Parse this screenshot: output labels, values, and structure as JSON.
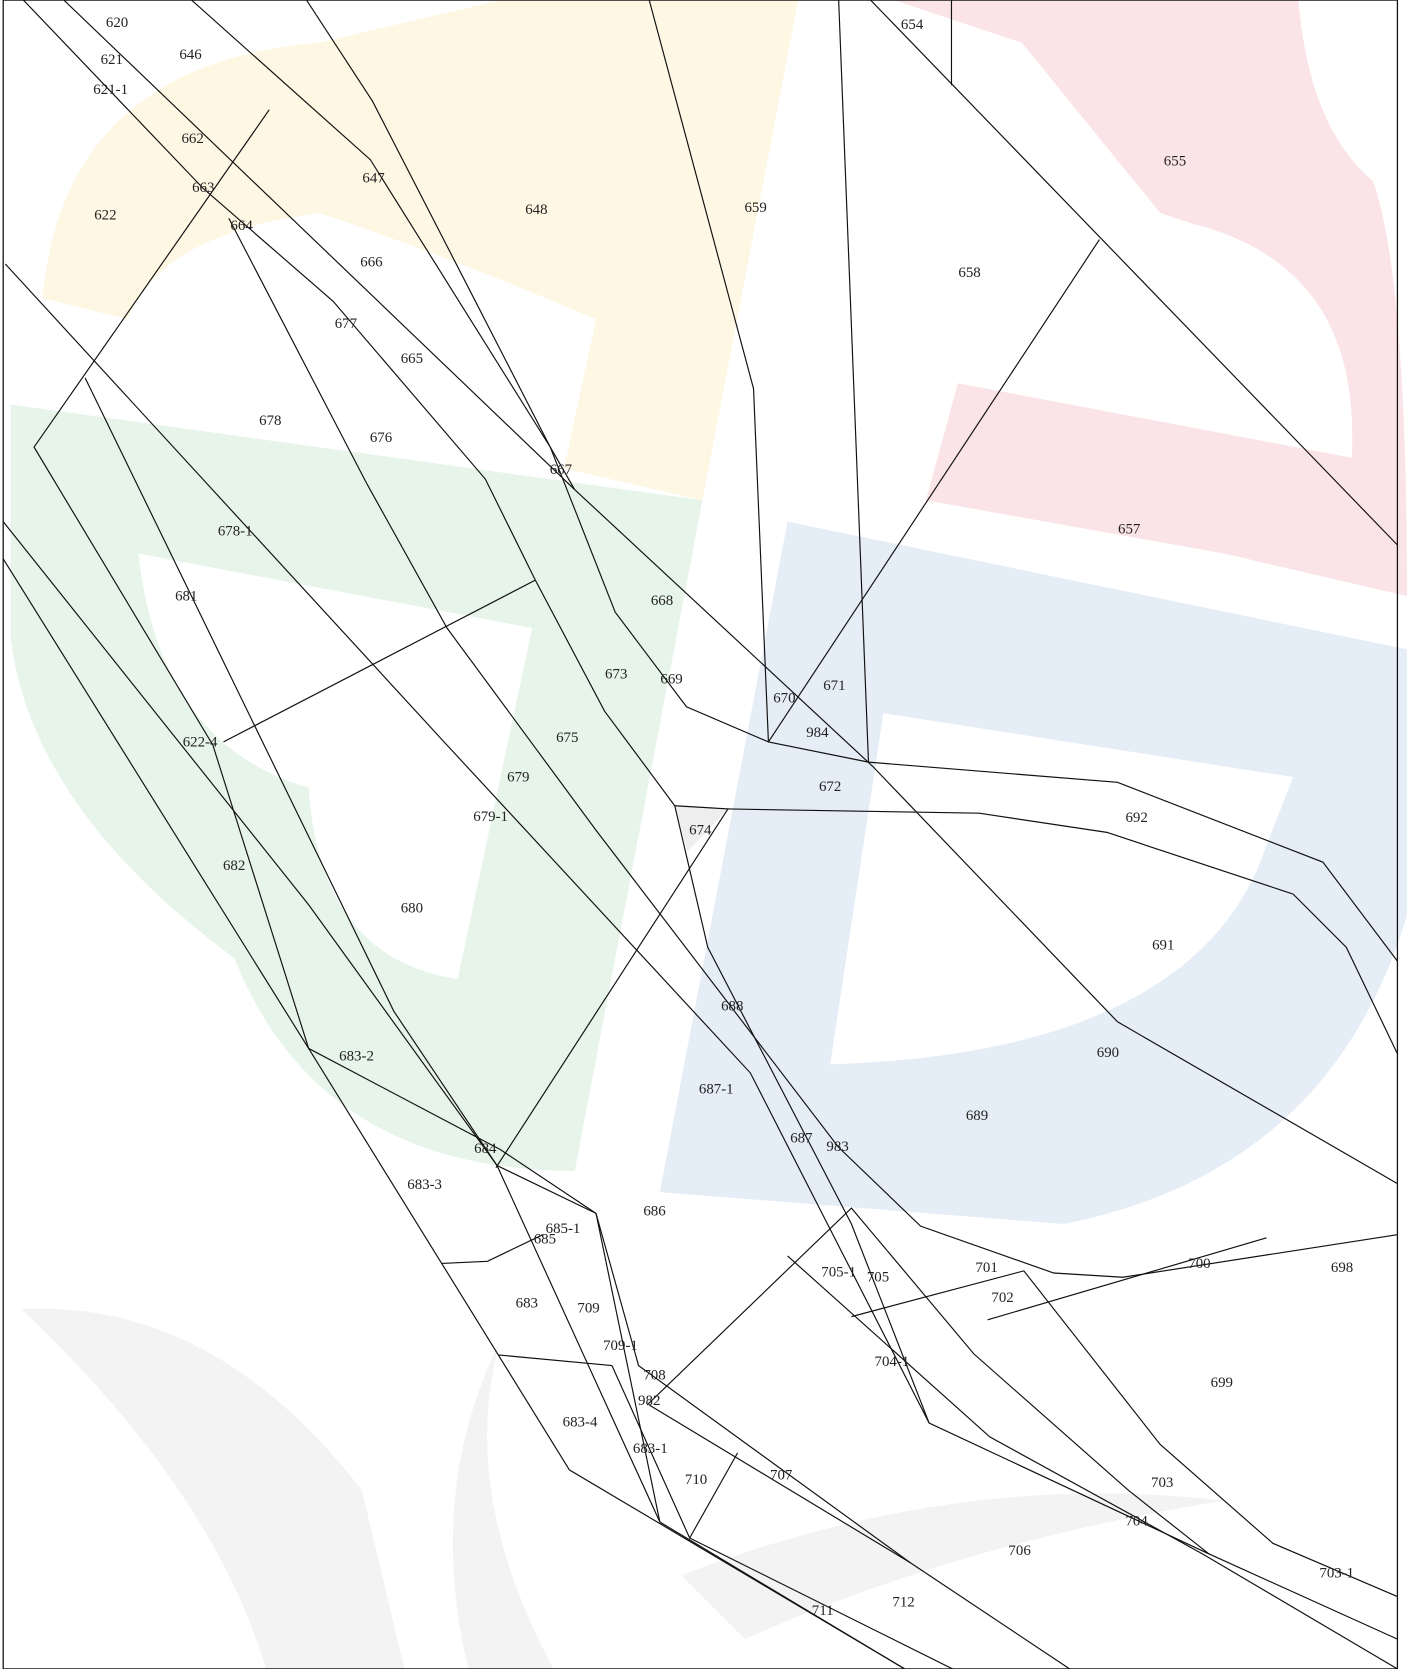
{
  "parcels": [
    "620",
    "621",
    "621-1",
    "646",
    "662",
    "663",
    "622",
    "664",
    "647",
    "648",
    "659",
    "654",
    "655",
    "658",
    "666",
    "677",
    "665",
    "678",
    "676",
    "667",
    "657",
    "678-1",
    "681",
    "668",
    "673",
    "669",
    "670",
    "671",
    "984",
    "675",
    "622-4",
    "679",
    "672",
    "679-1",
    "692",
    "674",
    "682",
    "680",
    "691",
    "688",
    "690",
    "683-2",
    "687-1",
    "689",
    "687",
    "983",
    "684",
    "683-3",
    "686",
    "685-1",
    "685",
    "700",
    "698",
    "701",
    "705-1",
    "705",
    "702",
    "683",
    "709",
    "709-1",
    "704-1",
    "708",
    "699",
    "982",
    "683-4",
    "683-1",
    "710",
    "707",
    "703",
    "704",
    "706",
    "703-1",
    "712",
    "711"
  ]
}
